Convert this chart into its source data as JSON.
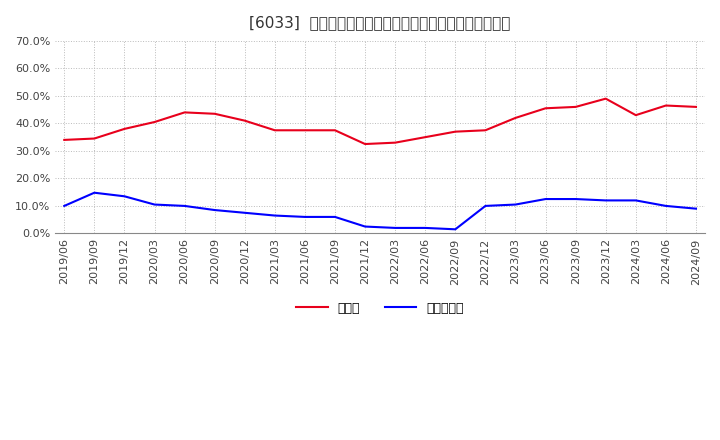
{
  "title": "[6033]  現預金、有利子負債の総資産に対する比率の推移",
  "x_labels": [
    "2019/06",
    "2019/09",
    "2019/12",
    "2020/03",
    "2020/06",
    "2020/09",
    "2020/12",
    "2021/03",
    "2021/06",
    "2021/09",
    "2021/12",
    "2022/03",
    "2022/06",
    "2022/09",
    "2022/12",
    "2023/03",
    "2023/06",
    "2023/09",
    "2023/12",
    "2024/03",
    "2024/06",
    "2024/09"
  ],
  "cash_ratio": [
    0.34,
    0.345,
    0.38,
    0.405,
    0.44,
    0.435,
    0.41,
    0.375,
    0.375,
    0.375,
    0.325,
    0.33,
    0.35,
    0.37,
    0.375,
    0.42,
    0.455,
    0.46,
    0.49,
    0.43,
    0.465,
    0.46
  ],
  "debt_ratio": [
    0.1,
    0.148,
    0.135,
    0.105,
    0.1,
    0.085,
    0.075,
    0.065,
    0.06,
    0.06,
    0.025,
    0.02,
    0.02,
    0.015,
    0.1,
    0.105,
    0.125,
    0.125,
    0.12,
    0.12,
    0.1,
    0.09
  ],
  "cash_color": "#e8001c",
  "debt_color": "#0000ff",
  "background_color": "#ffffff",
  "grid_color": "#bbbbbb",
  "ylim": [
    0.0,
    0.7
  ],
  "yticks": [
    0.0,
    0.1,
    0.2,
    0.3,
    0.4,
    0.5,
    0.6,
    0.7
  ],
  "legend_cash": "現預金",
  "legend_debt": "有利子負債",
  "title_fontsize": 11,
  "axis_fontsize": 8,
  "legend_fontsize": 9
}
